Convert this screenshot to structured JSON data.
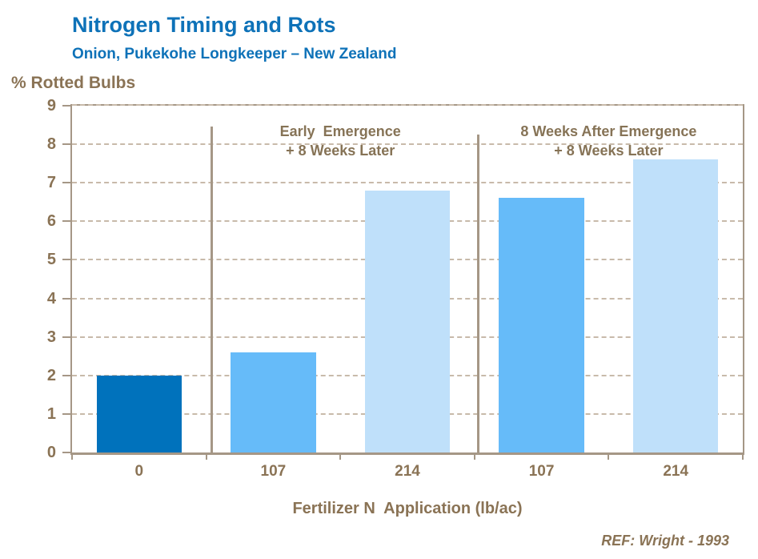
{
  "header": {
    "title": "Nitrogen Timing and Rots",
    "subtitle": "Onion, Pukekohe Longkeeper – New Zealand"
  },
  "footer": {
    "ref": "REF: Wright - 1993"
  },
  "colors": {
    "title_blue": "#0E72B8",
    "axis_taupe": "#A59786",
    "gridline_taupe": "#C8BAAA",
    "label_brown": "#8A7355",
    "bar_dark_blue": "#0072BC",
    "bar_medium_blue": "#66BBF9",
    "bar_light_blue": "#BFE0FA"
  },
  "chart_data": {
    "type": "bar",
    "title": "Nitrogen Timing and Rots",
    "subtitle": "Onion, Pukekohe Longkeeper – New Zealand",
    "ylabel": "% Rotted Bulbs",
    "xlabel": "Fertilizer N  Application (lb/ac)",
    "ylim": [
      0,
      9
    ],
    "yticks": [
      0,
      1,
      2,
      3,
      4,
      5,
      6,
      7,
      8,
      9
    ],
    "grid": "horizontal-dashed",
    "legend_position": "none",
    "categories": [
      "0",
      "107",
      "214",
      "107",
      "214"
    ],
    "values": [
      2.0,
      2.6,
      6.8,
      6.6,
      7.6
    ],
    "bar_colors": [
      "#0072BC",
      "#66BBF9",
      "#BFE0FA",
      "#66BBF9",
      "#BFE0FA"
    ],
    "groups": [
      {
        "label_line1": "Early  Emergence",
        "label_line2": "+ 8 Weeks Later"
      },
      {
        "label_line1": "8 Weeks After Emergence",
        "label_line2": "+ 8 Weeks Later"
      }
    ],
    "dividers": [
      {
        "at_slot_boundary": 1,
        "top_value": 8.45
      },
      {
        "at_slot_boundary": 3,
        "top_value": 8.25
      }
    ],
    "annotation": "REF: Wright - 1993"
  }
}
